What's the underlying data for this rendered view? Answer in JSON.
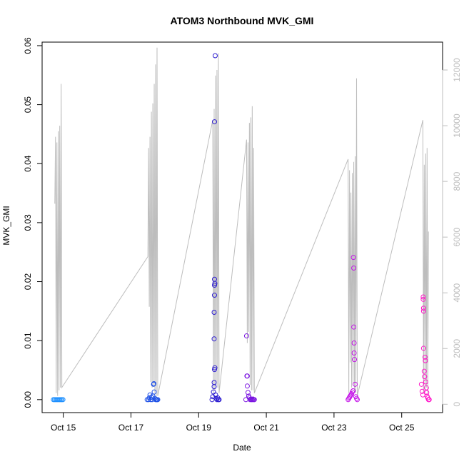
{
  "chart_data": {
    "type": "scatter",
    "title": "ATOM3 Northbound MVK_GMI",
    "xlabel": "Date",
    "ylabel": "MVK_GMI",
    "x_unit": "date",
    "x_range": [
      "2023-10-14T09:00",
      "2023-10-26T05:00"
    ],
    "y_range": [
      -0.0022,
      0.0606
    ],
    "y_ticks": [
      0.0,
      0.01,
      0.02,
      0.03,
      0.04,
      0.05,
      0.06
    ],
    "y_tick_labels": [
      "0.00",
      "0.01",
      "0.02",
      "0.03",
      "0.04",
      "0.05",
      "0.06"
    ],
    "x_ticks": [
      "2023-10-15",
      "2023-10-17",
      "2023-10-19",
      "2023-10-21",
      "2023-10-23",
      "2023-10-25"
    ],
    "x_tick_labels": [
      "Oct 15",
      "Oct 17",
      "Oct 19",
      "Oct 21",
      "Oct 23",
      "Oct 25"
    ],
    "y2_range": [
      -300,
      13000
    ],
    "y2_ticks": [
      0,
      2000,
      4000,
      6000,
      8000,
      10000,
      12000
    ],
    "y2_tick_labels": [
      "0",
      "2000",
      "4000",
      "6000",
      "8000",
      "10000",
      "12000"
    ],
    "grid": false,
    "legend": "none",
    "colors": {
      "secondary_line": "#bdbdbd",
      "axis": "#000000",
      "right_axis": "#bdbdbd",
      "group_colors": [
        "#1e90ff",
        "#1e50e6",
        "#2a1ad0",
        "#7a14e0",
        "#c414e8",
        "#ff14c8"
      ]
    },
    "secondary_series": [
      {
        "x": "2023-10-14T18:00",
        "y": 7200
      },
      {
        "x": "2023-10-14T18:30",
        "y": 9600
      },
      {
        "x": "2023-10-14T19:00",
        "y": 400
      },
      {
        "x": "2023-10-14T19:30",
        "y": 9400
      },
      {
        "x": "2023-10-14T20:00",
        "y": 300
      },
      {
        "x": "2023-10-14T20:30",
        "y": 9800
      },
      {
        "x": "2023-10-14T21:00",
        "y": 500
      },
      {
        "x": "2023-10-14T21:30",
        "y": 10000
      },
      {
        "x": "2023-10-14T22:00",
        "y": 600
      },
      {
        "x": "2023-10-14T22:30",
        "y": 11500
      },
      {
        "x": "2023-10-14T23:00",
        "y": 600
      },
      {
        "x": "2023-10-17T12:00",
        "y": 5300
      },
      {
        "x": "2023-10-17T12:30",
        "y": 9200
      },
      {
        "x": "2023-10-17T13:00",
        "y": 3500
      },
      {
        "x": "2023-10-17T13:30",
        "y": 9600
      },
      {
        "x": "2023-10-17T14:00",
        "y": 800
      },
      {
        "x": "2023-10-17T14:30",
        "y": 10500
      },
      {
        "x": "2023-10-17T15:00",
        "y": 600
      },
      {
        "x": "2023-10-17T15:30",
        "y": 10800
      },
      {
        "x": "2023-10-17T16:00",
        "y": 700
      },
      {
        "x": "2023-10-17T16:30",
        "y": 11500
      },
      {
        "x": "2023-10-17T17:00",
        "y": 400
      },
      {
        "x": "2023-10-17T17:30",
        "y": 12200
      },
      {
        "x": "2023-10-17T18:00",
        "y": 300
      },
      {
        "x": "2023-10-17T18:30",
        "y": 12800
      },
      {
        "x": "2023-10-17T19:00",
        "y": 300
      },
      {
        "x": "2023-10-19T10:00",
        "y": 10200
      },
      {
        "x": "2023-10-19T10:30",
        "y": 400
      },
      {
        "x": "2023-10-19T11:00",
        "y": 10600
      },
      {
        "x": "2023-10-19T11:30",
        "y": 500
      },
      {
        "x": "2023-10-19T12:00",
        "y": 11800
      },
      {
        "x": "2023-10-19T12:30",
        "y": 700
      },
      {
        "x": "2023-10-19T13:00",
        "y": 12000
      },
      {
        "x": "2023-10-19T13:30",
        "y": 600
      },
      {
        "x": "2023-10-19T14:00",
        "y": 12600
      },
      {
        "x": "2023-10-19T14:30",
        "y": 400
      },
      {
        "x": "2023-10-20T10:00",
        "y": 9500
      },
      {
        "x": "2023-10-20T10:30",
        "y": 2200
      },
      {
        "x": "2023-10-20T11:00",
        "y": 9400
      },
      {
        "x": "2023-10-20T11:30",
        "y": 2600
      },
      {
        "x": "2023-10-20T12:00",
        "y": 10100
      },
      {
        "x": "2023-10-20T12:30",
        "y": 700
      },
      {
        "x": "2023-10-20T13:00",
        "y": 10300
      },
      {
        "x": "2023-10-20T13:30",
        "y": 500
      },
      {
        "x": "2023-10-20T14:00",
        "y": 10700
      },
      {
        "x": "2023-10-20T14:30",
        "y": 500
      },
      {
        "x": "2023-10-20T15:00",
        "y": 9200
      },
      {
        "x": "2023-10-20T15:30",
        "y": 400
      },
      {
        "x": "2023-10-23T10:00",
        "y": 8800
      },
      {
        "x": "2023-10-23T10:30",
        "y": 400
      },
      {
        "x": "2023-10-23T11:00",
        "y": 8400
      },
      {
        "x": "2023-10-23T11:30",
        "y": 1500
      },
      {
        "x": "2023-10-23T12:00",
        "y": 7600
      },
      {
        "x": "2023-10-23T12:30",
        "y": 600
      },
      {
        "x": "2023-10-23T13:00",
        "y": 8300
      },
      {
        "x": "2023-10-23T13:30",
        "y": 700
      },
      {
        "x": "2023-10-23T14:00",
        "y": 8700
      },
      {
        "x": "2023-10-23T14:30",
        "y": 500
      },
      {
        "x": "2023-10-23T15:00",
        "y": 8900
      },
      {
        "x": "2023-10-23T15:30",
        "y": 400
      },
      {
        "x": "2023-10-23T16:00",
        "y": 11700
      },
      {
        "x": "2023-10-23T16:30",
        "y": 300
      },
      {
        "x": "2023-10-25T15:00",
        "y": 10200
      },
      {
        "x": "2023-10-25T15:30",
        "y": 400
      },
      {
        "x": "2023-10-25T16:00",
        "y": 8600
      },
      {
        "x": "2023-10-25T16:30",
        "y": 500
      },
      {
        "x": "2023-10-25T17:00",
        "y": 9000
      },
      {
        "x": "2023-10-25T17:30",
        "y": 600
      },
      {
        "x": "2023-10-25T18:00",
        "y": 9200
      },
      {
        "x": "2023-10-25T18:30",
        "y": 400
      },
      {
        "x": "2023-10-25T19:00",
        "y": 6200
      }
    ],
    "groups": [
      {
        "color": "#1e90ff",
        "points": [
          {
            "x": "2023-10-14T17:00",
            "y": 0.0
          },
          {
            "x": "2023-10-14T17:45",
            "y": 0.0
          },
          {
            "x": "2023-10-14T18:30",
            "y": 0.0
          },
          {
            "x": "2023-10-14T19:15",
            "y": 0.0
          },
          {
            "x": "2023-10-14T20:00",
            "y": 0.0
          },
          {
            "x": "2023-10-14T20:45",
            "y": 0.0
          },
          {
            "x": "2023-10-14T21:30",
            "y": 0.0
          },
          {
            "x": "2023-10-14T22:15",
            "y": 0.0
          },
          {
            "x": "2023-10-14T23:00",
            "y": 0.0
          },
          {
            "x": "2023-10-14T23:45",
            "y": 0.0
          }
        ]
      },
      {
        "color": "#1e50e6",
        "points": [
          {
            "x": "2023-10-17T11:30",
            "y": 0.0
          },
          {
            "x": "2023-10-17T12:30",
            "y": 0.0
          },
          {
            "x": "2023-10-17T13:00",
            "y": 0.0003
          },
          {
            "x": "2023-10-17T13:30",
            "y": 0.0008
          },
          {
            "x": "2023-10-17T14:00",
            "y": 0.0
          },
          {
            "x": "2023-10-17T14:30",
            "y": 0.0004
          },
          {
            "x": "2023-10-17T15:00",
            "y": 0.0
          },
          {
            "x": "2023-10-17T15:30",
            "y": 0.0006
          },
          {
            "x": "2023-10-17T16:00",
            "y": 0.0026
          },
          {
            "x": "2023-10-17T16:15",
            "y": 0.0027
          },
          {
            "x": "2023-10-17T16:30",
            "y": 0.0013
          },
          {
            "x": "2023-10-17T17:00",
            "y": 0.0002
          },
          {
            "x": "2023-10-17T17:30",
            "y": 0.0
          },
          {
            "x": "2023-10-17T18:00",
            "y": 0.0
          },
          {
            "x": "2023-10-17T18:30",
            "y": 0.0
          },
          {
            "x": "2023-10-17T19:00",
            "y": 0.0
          }
        ]
      },
      {
        "color": "#2a1ad0",
        "points": [
          {
            "x": "2023-10-19T09:30",
            "y": 0.0
          },
          {
            "x": "2023-10-19T10:00",
            "y": 0.0005
          },
          {
            "x": "2023-10-19T10:30",
            "y": 0.0013
          },
          {
            "x": "2023-10-19T11:00",
            "y": 0.0022
          },
          {
            "x": "2023-10-19T11:00",
            "y": 0.0029
          },
          {
            "x": "2023-10-19T11:15",
            "y": 0.0051
          },
          {
            "x": "2023-10-19T11:30",
            "y": 0.0054
          },
          {
            "x": "2023-10-19T11:00",
            "y": 0.0103
          },
          {
            "x": "2023-10-19T11:00",
            "y": 0.0148
          },
          {
            "x": "2023-10-19T11:15",
            "y": 0.0177
          },
          {
            "x": "2023-10-19T11:15",
            "y": 0.0194
          },
          {
            "x": "2023-10-19T11:30",
            "y": 0.0197
          },
          {
            "x": "2023-10-19T11:15",
            "y": 0.0204
          },
          {
            "x": "2023-10-19T11:15",
            "y": 0.0471
          },
          {
            "x": "2023-10-19T11:45",
            "y": 0.0583
          },
          {
            "x": "2023-10-19T12:00",
            "y": 0.0008
          },
          {
            "x": "2023-10-19T12:30",
            "y": 0.0002
          },
          {
            "x": "2023-10-19T13:00",
            "y": 0.0
          },
          {
            "x": "2023-10-19T13:30",
            "y": 0.0003
          },
          {
            "x": "2023-10-19T14:00",
            "y": 0.0
          },
          {
            "x": "2023-10-19T14:30",
            "y": 0.0
          }
        ]
      },
      {
        "color": "#7a14e0",
        "points": [
          {
            "x": "2023-10-20T09:30",
            "y": 0.0
          },
          {
            "x": "2023-10-20T10:00",
            "y": 0.0108
          },
          {
            "x": "2023-10-20T10:15",
            "y": 0.004
          },
          {
            "x": "2023-10-20T10:30",
            "y": 0.004
          },
          {
            "x": "2023-10-20T10:30",
            "y": 0.0023
          },
          {
            "x": "2023-10-20T11:00",
            "y": 0.0012
          },
          {
            "x": "2023-10-20T11:30",
            "y": 0.0006
          },
          {
            "x": "2023-10-20T12:00",
            "y": 0.0003
          },
          {
            "x": "2023-10-20T12:30",
            "y": 0.0
          },
          {
            "x": "2023-10-20T13:00",
            "y": 0.0001
          },
          {
            "x": "2023-10-20T13:30",
            "y": 0.0
          },
          {
            "x": "2023-10-20T14:00",
            "y": 0.0
          },
          {
            "x": "2023-10-20T14:30",
            "y": 0.0001
          },
          {
            "x": "2023-10-20T15:00",
            "y": 0.0
          },
          {
            "x": "2023-10-20T15:30",
            "y": 0.0
          }
        ]
      },
      {
        "color": "#c414e8",
        "points": [
          {
            "x": "2023-10-23T10:00",
            "y": 0.0
          },
          {
            "x": "2023-10-23T10:30",
            "y": 0.0002
          },
          {
            "x": "2023-10-23T11:00",
            "y": 0.0004
          },
          {
            "x": "2023-10-23T11:30",
            "y": 0.0006
          },
          {
            "x": "2023-10-23T12:00",
            "y": 0.0008
          },
          {
            "x": "2023-10-23T12:30",
            "y": 0.001
          },
          {
            "x": "2023-10-23T13:00",
            "y": 0.0013
          },
          {
            "x": "2023-10-23T13:30",
            "y": 0.0015
          },
          {
            "x": "2023-10-23T13:45",
            "y": 0.0241
          },
          {
            "x": "2023-10-23T14:00",
            "y": 0.0223
          },
          {
            "x": "2023-10-23T14:00",
            "y": 0.0123
          },
          {
            "x": "2023-10-23T14:15",
            "y": 0.0096
          },
          {
            "x": "2023-10-23T14:15",
            "y": 0.0079
          },
          {
            "x": "2023-10-23T14:30",
            "y": 0.0068
          },
          {
            "x": "2023-10-23T15:00",
            "y": 0.0026
          },
          {
            "x": "2023-10-23T15:30",
            "y": 0.0005
          },
          {
            "x": "2023-10-23T16:00",
            "y": 0.0002
          },
          {
            "x": "2023-10-23T16:30",
            "y": 0.0
          }
        ]
      },
      {
        "color": "#ff14c8",
        "points": [
          {
            "x": "2023-10-25T14:00",
            "y": 0.0026
          },
          {
            "x": "2023-10-25T14:30",
            "y": 0.0014
          },
          {
            "x": "2023-10-25T15:00",
            "y": 0.0008
          },
          {
            "x": "2023-10-25T15:15",
            "y": 0.0174
          },
          {
            "x": "2023-10-25T15:15",
            "y": 0.017
          },
          {
            "x": "2023-10-25T15:30",
            "y": 0.0155
          },
          {
            "x": "2023-10-25T15:30",
            "y": 0.015
          },
          {
            "x": "2023-10-25T15:30",
            "y": 0.0087
          },
          {
            "x": "2023-10-25T16:00",
            "y": 0.0048
          },
          {
            "x": "2023-10-25T16:30",
            "y": 0.0072
          },
          {
            "x": "2023-10-25T16:45",
            "y": 0.0066
          },
          {
            "x": "2023-10-25T16:15",
            "y": 0.0039
          },
          {
            "x": "2023-10-25T17:00",
            "y": 0.003
          },
          {
            "x": "2023-10-25T17:30",
            "y": 0.002
          },
          {
            "x": "2023-10-25T17:45",
            "y": 0.0012
          },
          {
            "x": "2023-10-25T18:00",
            "y": 0.0006
          },
          {
            "x": "2023-10-25T18:30",
            "y": 0.0003
          },
          {
            "x": "2023-10-25T19:00",
            "y": 0.0
          },
          {
            "x": "2023-10-25T19:30",
            "y": 0.0
          }
        ]
      }
    ]
  }
}
